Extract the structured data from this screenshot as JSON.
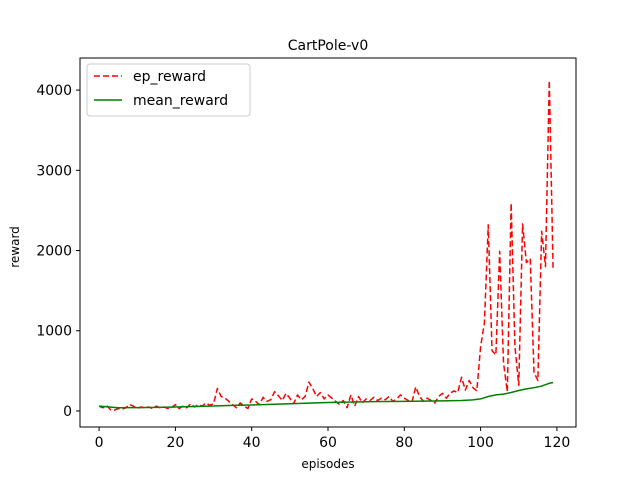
{
  "chart_data": {
    "type": "line",
    "title": "CartPole-v0",
    "xlabel": "episodes",
    "ylabel": "reward",
    "xlim": [
      -5,
      125
    ],
    "ylim": [
      -200,
      4400
    ],
    "xticks": [
      0,
      20,
      40,
      60,
      80,
      100,
      120
    ],
    "yticks": [
      0,
      1000,
      2000,
      3000,
      4000
    ],
    "grid": false,
    "legend_position": "top-left",
    "series": [
      {
        "name": "ep_reward",
        "color": "#ff0000",
        "style": "dashed",
        "x": [
          0,
          1,
          2,
          3,
          4,
          5,
          6,
          7,
          8,
          9,
          10,
          11,
          12,
          13,
          14,
          15,
          16,
          17,
          18,
          19,
          20,
          21,
          22,
          23,
          24,
          25,
          26,
          27,
          28,
          29,
          30,
          31,
          32,
          33,
          34,
          35,
          36,
          37,
          38,
          39,
          40,
          41,
          42,
          43,
          44,
          45,
          46,
          47,
          48,
          49,
          50,
          51,
          52,
          53,
          54,
          55,
          56,
          57,
          58,
          59,
          60,
          61,
          62,
          63,
          64,
          65,
          66,
          67,
          68,
          69,
          70,
          71,
          72,
          73,
          74,
          75,
          76,
          77,
          78,
          79,
          80,
          81,
          82,
          83,
          84,
          85,
          86,
          87,
          88,
          89,
          90,
          91,
          92,
          93,
          94,
          95,
          96,
          97,
          98,
          99,
          100,
          101,
          102,
          103,
          104,
          105,
          106,
          107,
          108,
          109,
          110,
          111,
          112,
          113,
          114,
          115,
          116,
          117,
          118,
          119
        ],
        "y": [
          60,
          40,
          70,
          15,
          10,
          30,
          20,
          40,
          80,
          60,
          30,
          50,
          40,
          50,
          30,
          60,
          40,
          50,
          30,
          40,
          80,
          30,
          60,
          40,
          90,
          50,
          80,
          60,
          100,
          70,
          90,
          280,
          180,
          160,
          120,
          80,
          40,
          100,
          60,
          30,
          150,
          120,
          80,
          170,
          120,
          140,
          240,
          190,
          130,
          220,
          160,
          90,
          200,
          140,
          180,
          360,
          280,
          180,
          230,
          150,
          200,
          160,
          120,
          80,
          130,
          40,
          200,
          60,
          180,
          100,
          150,
          130,
          170,
          130,
          160,
          140,
          180,
          120,
          150,
          200,
          160,
          130,
          110,
          300,
          180,
          120,
          160,
          130,
          100,
          180,
          220,
          160,
          220,
          250,
          230,
          420,
          260,
          380,
          290,
          250,
          800,
          1100,
          2320,
          750,
          700,
          1990,
          600,
          240,
          2590,
          800,
          320,
          2330,
          1850,
          1900,
          480,
          380,
          2240,
          1800,
          4120,
          1760
        ]
      },
      {
        "name": "mean_reward",
        "color": "#008000",
        "style": "solid",
        "x": [
          0,
          5,
          10,
          15,
          20,
          25,
          30,
          35,
          40,
          45,
          50,
          55,
          60,
          65,
          70,
          75,
          80,
          85,
          90,
          95,
          98,
          100,
          102,
          104,
          106,
          108,
          110,
          112,
          114,
          116,
          118,
          119
        ],
        "y": [
          60,
          40,
          42,
          45,
          50,
          55,
          62,
          70,
          75,
          82,
          90,
          98,
          105,
          110,
          115,
          118,
          120,
          122,
          125,
          130,
          138,
          150,
          180,
          200,
          210,
          230,
          255,
          275,
          290,
          310,
          345,
          355
        ]
      }
    ]
  }
}
